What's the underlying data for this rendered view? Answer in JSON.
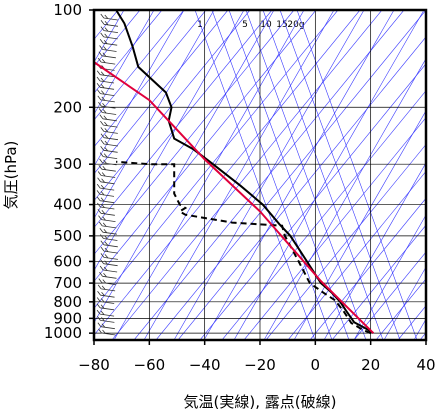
{
  "chart_data": {
    "type": "line",
    "title": "",
    "xlabel": "気温(実線), 露点(破線)",
    "ylabel": "気圧(hPa)",
    "xlim": [
      -80,
      40
    ],
    "ylim": [
      1050,
      100
    ],
    "y_log_scale": true,
    "x_ticks": [
      -80,
      -60,
      -40,
      -20,
      0,
      20,
      40
    ],
    "x_tick_labels": [
      "−80",
      "−60",
      "−40",
      "−20",
      "0",
      "20",
      "40"
    ],
    "y_ticks": [
      100,
      200,
      300,
      400,
      500,
      600,
      700,
      800,
      900,
      1000
    ],
    "y_tick_labels": [
      "100",
      "200",
      "300",
      "400",
      "500",
      "600",
      "700",
      "800",
      "900",
      "1000"
    ],
    "grid": true,
    "mixing_ratio_labels": [
      "1",
      "5",
      "10",
      "15",
      "20g"
    ],
    "series": [
      {
        "style": "solid",
        "color": "#000000",
        "points": [
          [
            21,
            1000
          ],
          [
            19,
            975
          ],
          [
            14,
            925
          ],
          [
            11,
            850
          ],
          [
            9,
            800
          ],
          [
            6,
            750
          ],
          [
            2,
            700
          ],
          [
            -3,
            600
          ],
          [
            -9,
            500
          ],
          [
            -13,
            460
          ],
          [
            -19,
            400
          ],
          [
            -27,
            350
          ],
          [
            -37,
            300
          ],
          [
            -44,
            270
          ],
          [
            -51,
            250
          ],
          [
            -53,
            220
          ],
          [
            -52,
            200
          ],
          [
            -54,
            180
          ],
          [
            -64,
            150
          ],
          [
            -66,
            130
          ],
          [
            -69,
            110
          ],
          [
            -72,
            100
          ]
        ]
      },
      {
        "style": "dashed",
        "color": "#000000",
        "points": [
          [
            20,
            1000
          ],
          [
            17,
            975
          ],
          [
            13,
            930
          ],
          [
            10,
            850
          ],
          [
            7,
            790
          ],
          [
            3,
            750
          ],
          [
            -2,
            700
          ],
          [
            -6,
            600
          ],
          [
            -11,
            500
          ],
          [
            -12,
            465
          ],
          [
            -30,
            455
          ],
          [
            -47,
            430
          ],
          [
            -49,
            420
          ],
          [
            -47,
            410
          ],
          [
            -49,
            400
          ],
          [
            -51,
            370
          ],
          [
            -51,
            300
          ],
          [
            -60,
            300
          ],
          [
            -72,
            295
          ]
        ]
      },
      {
        "style": "solid",
        "color": "#e0003c",
        "points": [
          [
            21,
            1000
          ],
          [
            2,
            690
          ],
          [
            -20,
            420
          ],
          [
            -40,
            290
          ],
          [
            -60,
            190
          ],
          [
            -80,
            145
          ]
        ]
      }
    ]
  }
}
